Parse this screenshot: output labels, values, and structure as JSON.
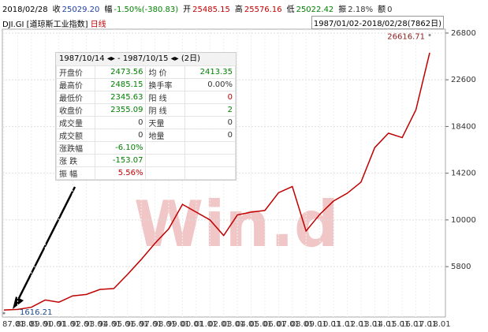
{
  "chart_data": {
    "type": "line",
    "top_bar": {
      "date": "2018/02/28",
      "fields": [
        {
          "label": "收",
          "value": "25029.20",
          "color": "#1f3f9f"
        },
        {
          "label": "幅",
          "value": "-1.50%(-380.83)",
          "color": "#008000"
        },
        {
          "label": "开",
          "value": "25485.15",
          "color": "#c00000"
        },
        {
          "label": "高",
          "value": "25576.16",
          "color": "#c00000"
        },
        {
          "label": "低",
          "value": "25022.42",
          "color": "#008000"
        },
        {
          "label": "振",
          "value": "2.18%",
          "color": "#333333"
        },
        {
          "label": "额",
          "value": "0",
          "color": "#333333"
        }
      ]
    },
    "code": "DJI.GI",
    "name": "[道琼斯工业指数]",
    "period": "日线",
    "range": "1987/01/02-2018/02/28(7862日)",
    "watermark": "Win.d",
    "tooltip": {
      "header": "1987/10/14 ◂▸ - 1987/10/15 ◂▸  (2日)",
      "rows": [
        [
          "开盘价",
          "2473.56",
          "均 价",
          "2413.35"
        ],
        [
          "最高价",
          "2485.15",
          "换手率",
          "0.00%"
        ],
        [
          "最低价",
          "2345.63",
          "阳 线",
          "0"
        ],
        [
          "收盘价",
          "2355.09",
          "阴 线",
          "2"
        ],
        [
          "成交量",
          "0",
          "天量",
          "0"
        ],
        [
          "成交额",
          "0",
          "地量",
          "0"
        ],
        [
          "涨跌幅",
          "-6.10%"
        ],
        [
          "涨 跌",
          "-153.07"
        ],
        [
          "振 幅",
          "5.56%"
        ]
      ]
    },
    "categories": [
      "87.01",
      "88.01",
      "89.01",
      "90.01",
      "91.01",
      "92.01",
      "93.01",
      "94.01",
      "95.01",
      "96.01",
      "97.01",
      "98.01",
      "99.01",
      "00.01",
      "01.01",
      "02.01",
      "03.01",
      "04.01",
      "05.01",
      "06.01",
      "07.01",
      "08.01",
      "09.01",
      "10.01",
      "11.01",
      "12.01",
      "13.01",
      "14.01",
      "15.01",
      "16.01",
      "17.01",
      "18.01"
    ],
    "series": [
      {
        "name": "DJI.GI",
        "color": "#c00000",
        "values": [
          1896,
          1950,
          2150,
          2800,
          2600,
          3170,
          3300,
          3750,
          3830,
          5100,
          6450,
          7900,
          9200,
          11400,
          10700,
          10000,
          8600,
          10450,
          10700,
          10850,
          12450,
          13000,
          9000,
          10500,
          11700,
          12400,
          13400,
          16500,
          17800,
          17400,
          19900,
          25029.2
        ]
      }
    ],
    "annotations": [
      {
        "text": "26616.71",
        "value": 26616.71,
        "at": "18.01"
      },
      {
        "text": "1616.21",
        "value": 1616.21,
        "at": "87.01"
      }
    ],
    "ylim": [
      1270,
      27150
    ],
    "yticks": [
      5800,
      10000,
      14200,
      18400,
      22600,
      26800
    ],
    "grid": true
  }
}
